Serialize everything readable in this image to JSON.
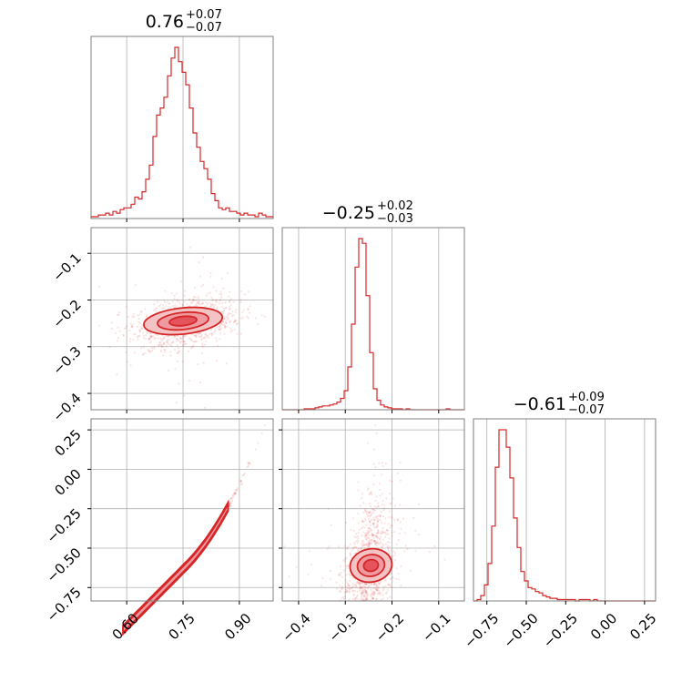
{
  "chart_data": {
    "type": "corner",
    "color": "#d62728",
    "parameters": [
      {
        "median": "0.76",
        "plus": "+0.07",
        "minus": "−0.07",
        "range": [
          0.505,
          0.99
        ],
        "ticks": [
          0.6,
          0.75,
          0.9
        ],
        "tick_labels": [
          "0.60",
          "0.75",
          "0.90"
        ]
      },
      {
        "median": "−0.25",
        "plus": "+0.02",
        "minus": "−0.03",
        "range": [
          -0.435,
          -0.045
        ],
        "ticks": [
          -0.4,
          -0.3,
          -0.2,
          -0.1
        ],
        "tick_labels": [
          "−0.4",
          "−0.3",
          "−0.2",
          "−0.1"
        ]
      },
      {
        "median": "−0.61",
        "plus": "+0.09",
        "minus": "−0.07",
        "range": [
          -0.835,
          0.32
        ],
        "ticks": [
          -0.75,
          -0.5,
          -0.25,
          0.0,
          0.25
        ],
        "tick_labels": [
          "−0.75",
          "−0.50",
          "−0.25",
          "0.00",
          "0.25"
        ]
      }
    ],
    "histograms": [
      {
        "edges_start": 0.505,
        "edges_end": 0.99,
        "counts": [
          1,
          1,
          2,
          2,
          3,
          2,
          4,
          3,
          5,
          6,
          6,
          8,
          12,
          11,
          15,
          22,
          30,
          46,
          58,
          62,
          68,
          80,
          90,
          96,
          88,
          82,
          75,
          62,
          48,
          40,
          32,
          28,
          22,
          14,
          10,
          6,
          5,
          6,
          4,
          4,
          3,
          2,
          3,
          2,
          2,
          1,
          3,
          2,
          1,
          1
        ]
      },
      {
        "edges_start": -0.435,
        "edges_end": -0.045,
        "counts": [
          0,
          0,
          0,
          0,
          0,
          0,
          1,
          1,
          1,
          2,
          3,
          4,
          4,
          5,
          6,
          8,
          12,
          20,
          45,
          90,
          150,
          180,
          175,
          120,
          60,
          22,
          10,
          5,
          3,
          2,
          1,
          1,
          1,
          0,
          1,
          0,
          0,
          0,
          0,
          0,
          0,
          0,
          0,
          0,
          0,
          1,
          0,
          0,
          0,
          0
        ]
      },
      {
        "edges_start": -0.835,
        "edges_end": 0.32,
        "counts": [
          0,
          1,
          4,
          12,
          28,
          56,
          100,
          128,
          128,
          115,
          92,
          62,
          40,
          22,
          15,
          10,
          9,
          7,
          6,
          4,
          3,
          2,
          2,
          1,
          1,
          1,
          1,
          1,
          0,
          1,
          1,
          1,
          0,
          1,
          0,
          0,
          0,
          0,
          0,
          0,
          0,
          0,
          0,
          0,
          0,
          0,
          0,
          0,
          0,
          0
        ]
      }
    ]
  }
}
